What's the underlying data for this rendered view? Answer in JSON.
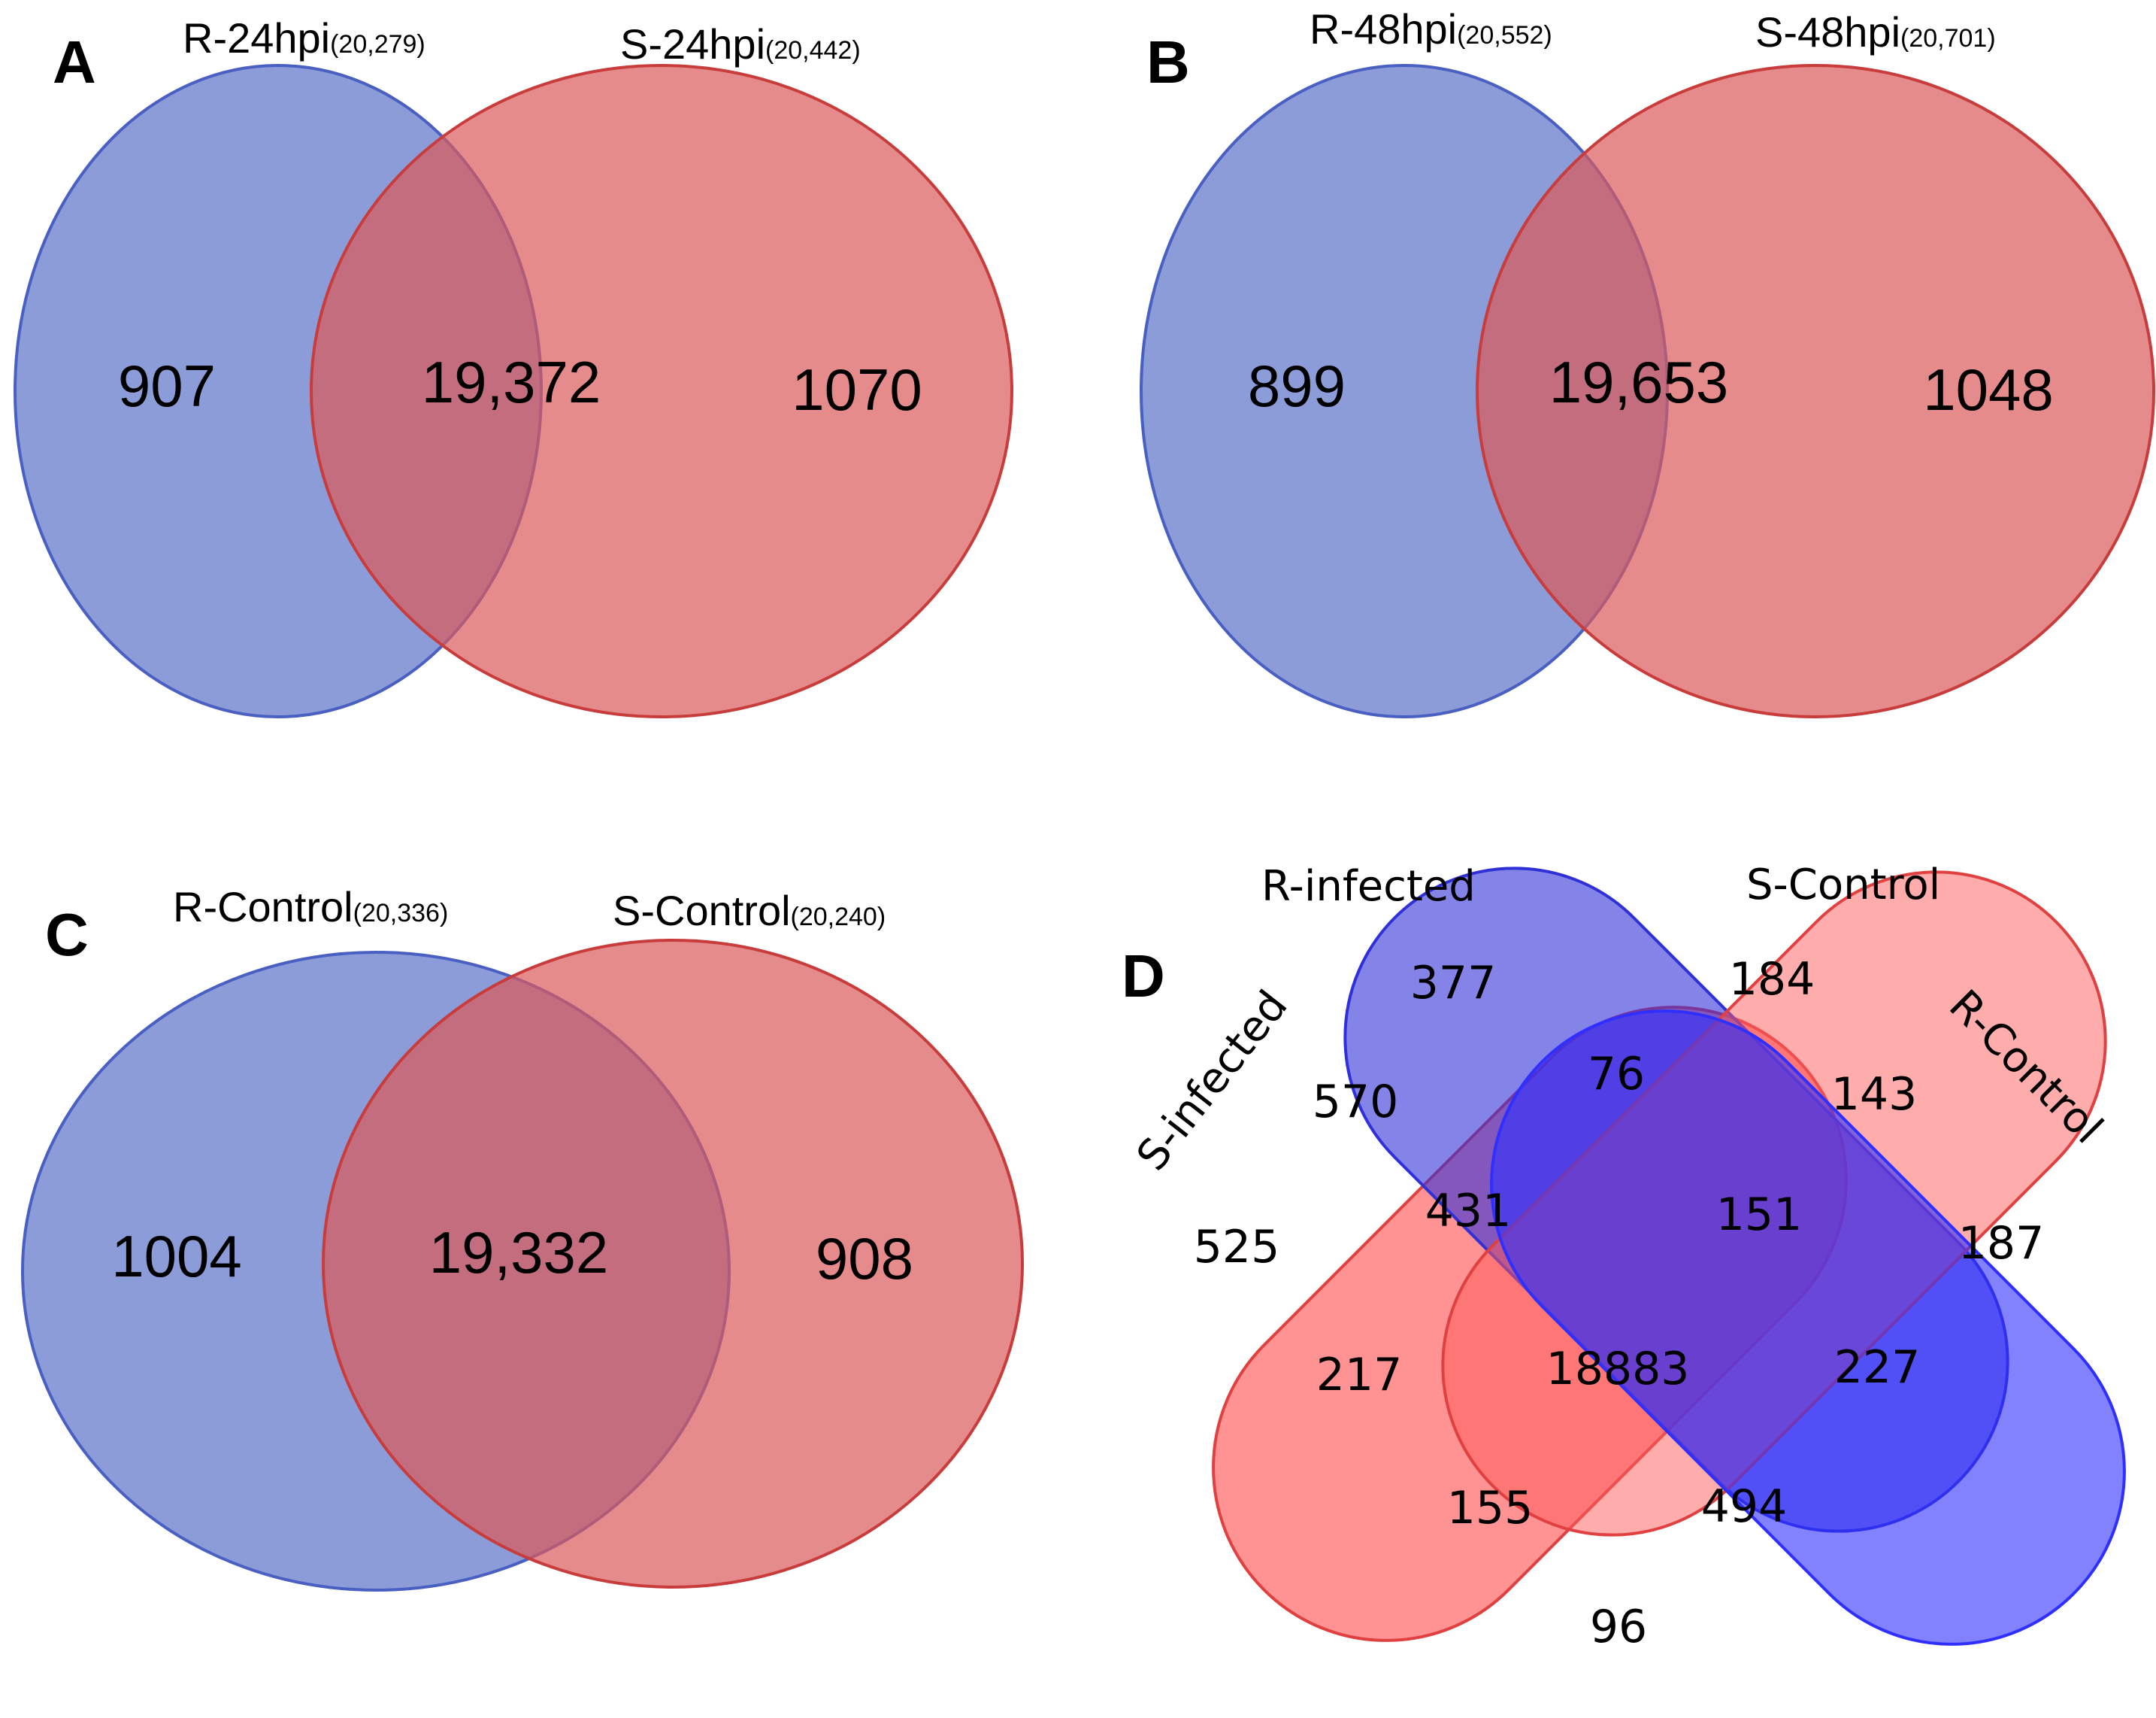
{
  "colors": {
    "blue_fill": "#5a72c8",
    "blue_stroke": "#4a5fc2",
    "red_fill": "#db5a5a",
    "red_stroke": "#c93c3c",
    "d_red_fill": "#ff4a4a",
    "d_blue_fill": "#2f2fff"
  },
  "panels": {
    "A": {
      "letter": "A",
      "left": {
        "name": "R-24hpi",
        "total": "(20,279)"
      },
      "right": {
        "name": "S-24hpi",
        "total": "(20,442)"
      },
      "left_only": "907",
      "shared": "19,372",
      "right_only": "1070"
    },
    "B": {
      "letter": "B",
      "left": {
        "name": "R-48hpi",
        "total": "(20,552)"
      },
      "right": {
        "name": "S-48hpi",
        "total": "(20,701)"
      },
      "left_only": "899",
      "shared": "19,653",
      "right_only": "1048"
    },
    "C": {
      "letter": "C",
      "left": {
        "name": "R-Control",
        "total": "(20,336)"
      },
      "right": {
        "name": "S-Control",
        "total": "(20,240)"
      },
      "left_only": "1004",
      "shared": "19,332",
      "right_only": "908"
    },
    "D": {
      "letter": "D",
      "sets": {
        "s_infected": "S-infected",
        "r_infected": "R-infected",
        "s_control": "S-Control",
        "r_control": "R-Control"
      },
      "regions": {
        "r_infected_only": "377",
        "s_control_only": "184",
        "r_inf_s_ctrl": "76",
        "s_inf_r_inf": "570",
        "s_ctrl_r_ctrl": "143",
        "s_inf_r_inf_s_ctrl": "431",
        "r_inf_s_ctrl_r_ctrl": "151",
        "s_infected_only": "525",
        "r_control_only": "187",
        "s_inf_s_ctrl_r_ctrl": "217",
        "all_four": "18883",
        "s_inf_r_inf_r_ctrl": "227",
        "s_inf_r_ctrl_pair": "155",
        "r_inf_r_ctrl_pair": "494",
        "s_inf_r_ctrl_bottom": "96"
      }
    }
  }
}
